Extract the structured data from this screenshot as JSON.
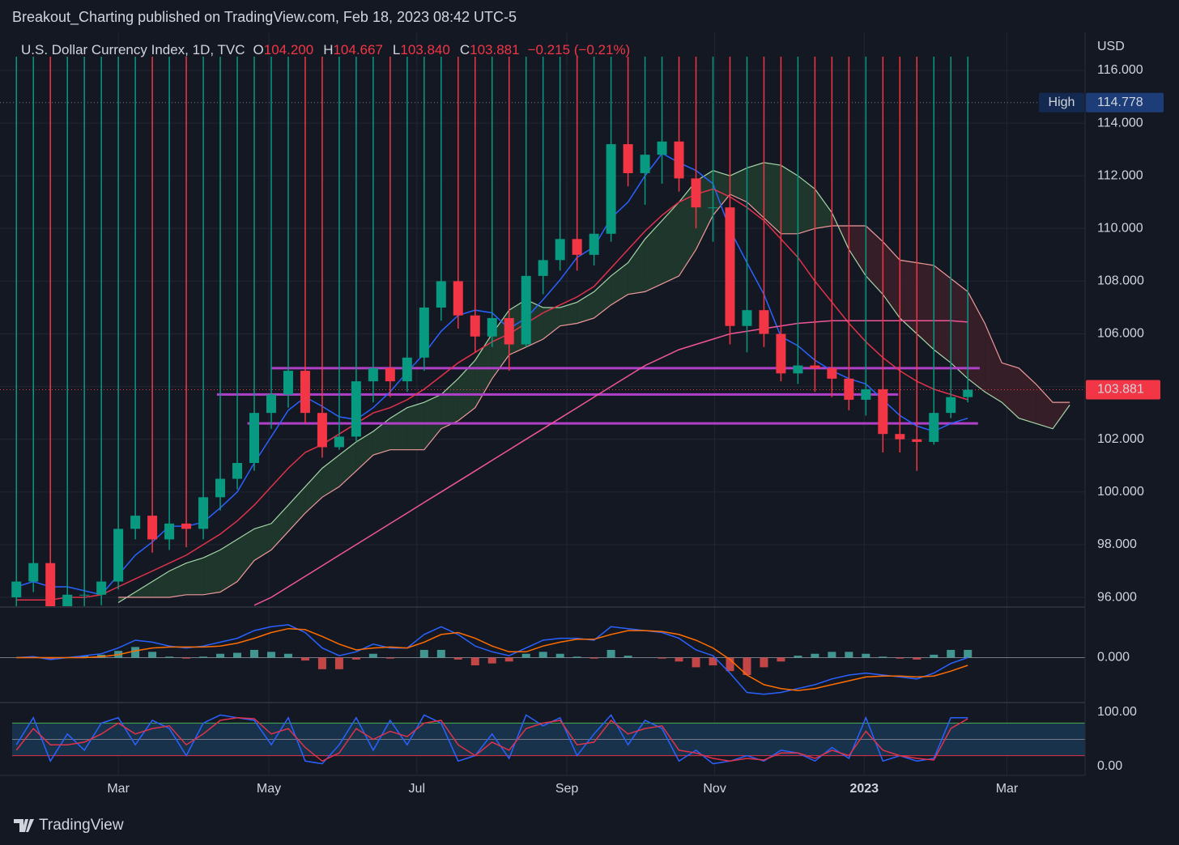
{
  "header": {
    "publisher": "Breakout_Charting published on TradingView.com, Feb 18, 2023 08:42 UTC-5",
    "brand": "TradingView"
  },
  "chart_data": [
    {
      "type": "candlestick",
      "title": "U.S. Dollar Currency Index, 1D, TVC",
      "ohlc": [
        {
          "key": "O",
          "text": "104.200"
        },
        {
          "key": "H",
          "text": "104.667"
        },
        {
          "key": "L",
          "text": "103.840"
        },
        {
          "key": "C",
          "text": "103.881"
        }
      ],
      "change": "−0.215 (−0.21%)",
      "currency": "USD",
      "up_color": "#089981",
      "down_color": "#f23645",
      "x": [
        0,
        1,
        2,
        3,
        4,
        5,
        6,
        7,
        8,
        9,
        10,
        11,
        12,
        13,
        14,
        15,
        16,
        17,
        18,
        19,
        20,
        21,
        22,
        23,
        24,
        25,
        26,
        27,
        28,
        29,
        30,
        31,
        32,
        33,
        34,
        35,
        36,
        37,
        38,
        39,
        40,
        41,
        42,
        43,
        44,
        45,
        46,
        47,
        48,
        49,
        50,
        51,
        52,
        53,
        54,
        55,
        56
      ],
      "open": [
        96.0,
        96.6,
        97.3,
        95.5,
        96.1,
        96.1,
        96.6,
        98.6,
        99.1,
        98.2,
        98.8,
        98.6,
        99.8,
        100.5,
        101.1,
        103.0,
        103.7,
        104.6,
        103.0,
        101.7,
        102.1,
        104.2,
        104.7,
        104.2,
        105.1,
        107.0,
        108.0,
        106.7,
        105.9,
        106.6,
        105.6,
        108.2,
        108.8,
        109.6,
        109.0,
        109.8,
        113.2,
        112.1,
        112.8,
        113.3,
        111.9,
        110.8,
        110.8,
        106.3,
        106.9,
        106.0,
        104.5,
        104.8,
        104.7,
        104.3,
        103.5,
        103.9,
        102.2,
        102.0,
        101.9,
        103.0,
        103.6
      ],
      "high": {
        "label": "High",
        "value": 114.778
      },
      "low": [
        95.6,
        96.2,
        95.2,
        95.3,
        95.6,
        95.7,
        96.3,
        98.2,
        97.7,
        97.8,
        97.9,
        98.2,
        99.3,
        100.1,
        100.8,
        102.4,
        103.2,
        102.6,
        101.3,
        101.6,
        101.9,
        103.4,
        103.6,
        103.8,
        104.6,
        106.5,
        106.2,
        105.3,
        105.5,
        104.6,
        105.5,
        107.5,
        108.4,
        108.4,
        108.6,
        109.5,
        111.6,
        110.9,
        111.7,
        111.4,
        110.0,
        109.5,
        105.6,
        105.3,
        105.5,
        104.2,
        104.1,
        103.8,
        103.6,
        103.1,
        102.9,
        101.5,
        101.5,
        100.8,
        101.8,
        102.8,
        103.4
      ],
      "close": [
        96.6,
        97.3,
        95.5,
        96.1,
        96.1,
        96.6,
        98.6,
        99.1,
        98.2,
        98.8,
        98.6,
        99.8,
        100.5,
        101.1,
        103.0,
        103.7,
        104.6,
        103.0,
        101.7,
        102.1,
        104.2,
        104.7,
        104.2,
        105.1,
        107.0,
        108.0,
        106.7,
        105.9,
        106.6,
        105.6,
        108.2,
        108.8,
        109.6,
        109.0,
        109.8,
        113.2,
        112.1,
        112.8,
        113.3,
        111.9,
        110.8,
        110.8,
        106.3,
        106.9,
        106.0,
        104.5,
        104.8,
        104.7,
        104.3,
        103.5,
        103.9,
        102.2,
        102.0,
        101.9,
        103.0,
        103.6,
        103.88
      ],
      "overlays": [
        {
          "color": "#2962ff",
          "values": [
            96.4,
            96.6,
            96.4,
            96.4,
            96.25,
            96.1,
            96.85,
            97.6,
            98.1,
            98.7,
            98.7,
            98.85,
            99.4,
            100.0,
            101.1,
            102.1,
            103.1,
            103.6,
            103.25,
            102.85,
            102.75,
            103.2,
            103.8,
            104.55,
            105.25,
            106.1,
            106.7,
            106.9,
            106.8,
            106.2,
            106.6,
            107.3,
            108.05,
            108.9,
            109.3,
            110.4,
            111.0,
            112.0,
            112.85,
            112.5,
            112.2,
            111.7,
            109.95,
            108.7,
            107.5,
            105.9,
            105.55,
            105.0,
            104.6,
            104.3,
            104.1,
            103.5,
            102.9,
            102.5,
            102.3,
            102.6,
            102.8
          ]
        },
        {
          "color": "#e0324a",
          "values": [
            95.9,
            95.9,
            95.9,
            96.0,
            96.0,
            96.1,
            96.4,
            96.7,
            97.0,
            97.3,
            97.6,
            98.0,
            98.4,
            98.9,
            99.5,
            100.2,
            100.9,
            101.5,
            101.8,
            102.2,
            102.6,
            103.0,
            103.2,
            103.5,
            103.9,
            104.4,
            104.9,
            105.3,
            105.7,
            106.0,
            106.4,
            106.8,
            107.1,
            107.4,
            107.8,
            108.5,
            109.2,
            109.9,
            110.5,
            111.0,
            111.3,
            111.5,
            111.2,
            110.8,
            110.3,
            109.6,
            108.9,
            108.0,
            107.2,
            106.4,
            105.7,
            105.1,
            104.6,
            104.2,
            103.9,
            103.7,
            103.5
          ]
        },
        {
          "color": "#f0559a",
          "values": [
            null,
            null,
            null,
            null,
            null,
            null,
            null,
            null,
            null,
            null,
            null,
            null,
            null,
            null,
            95.7,
            96.0,
            96.4,
            96.8,
            97.2,
            97.6,
            98.0,
            98.4,
            98.8,
            99.2,
            99.6,
            100.0,
            100.4,
            100.8,
            101.2,
            101.6,
            102.0,
            102.4,
            102.8,
            103.2,
            103.6,
            104.0,
            104.4,
            104.8,
            105.1,
            105.4,
            105.6,
            105.8,
            106.0,
            106.1,
            106.2,
            106.3,
            106.4,
            106.45,
            106.5,
            106.5,
            106.5,
            106.5,
            106.5,
            106.5,
            106.5,
            106.5,
            106.45
          ]
        }
      ],
      "cloud": {
        "x": [
          6,
          7,
          8,
          9,
          10,
          11,
          12,
          13,
          14,
          15,
          16,
          17,
          18,
          19,
          20,
          21,
          22,
          23,
          24,
          25,
          26,
          27,
          28,
          29,
          30,
          31,
          32,
          33,
          34,
          35,
          36,
          37,
          38,
          39,
          40,
          41,
          42,
          43,
          44,
          45,
          46,
          47,
          48,
          49,
          50,
          51,
          52,
          53,
          54,
          55,
          56,
          57,
          58,
          59,
          60,
          61,
          62
        ],
        "span_a": {
          "color": "#a5d6a7",
          "values": [
            95.8,
            96.2,
            96.6,
            97.0,
            97.3,
            97.5,
            97.8,
            98.2,
            98.6,
            98.8,
            99.5,
            100.2,
            100.9,
            101.4,
            101.9,
            102.3,
            102.8,
            103.2,
            103.4,
            103.7,
            104.3,
            105.0,
            106.0,
            106.9,
            107.3,
            107.0,
            107.0,
            107.2,
            107.6,
            108.2,
            108.7,
            109.6,
            110.3,
            111.0,
            111.8,
            112.2,
            112.0,
            112.3,
            112.5,
            112.4,
            112.0,
            111.5,
            110.6,
            109.2,
            108.2,
            107.5,
            106.6,
            106.0,
            105.4,
            104.9,
            104.3,
            103.8,
            103.4,
            102.8,
            102.6,
            102.4,
            103.3
          ]
        },
        "span_b": {
          "color": "#ef9a9a",
          "values": [
            96.0,
            96.0,
            96.0,
            96.0,
            96.1,
            96.1,
            96.2,
            96.6,
            97.4,
            97.8,
            98.5,
            99.2,
            99.8,
            100.2,
            100.8,
            101.4,
            101.6,
            101.6,
            101.6,
            102.4,
            102.7,
            103.2,
            104.3,
            105.2,
            105.5,
            105.8,
            106.3,
            106.4,
            106.6,
            107.1,
            107.5,
            107.6,
            107.9,
            108.2,
            109.2,
            110.5,
            111.3,
            111.0,
            110.4,
            109.8,
            109.8,
            110.0,
            110.1,
            110.1,
            110.1,
            109.5,
            108.8,
            108.7,
            108.6,
            108.1,
            107.6,
            106.4,
            104.9,
            104.7,
            104.1,
            103.4,
            103.4
          ]
        },
        "up_fill": "#1f3a2c",
        "down_fill": "#3a1f29"
      },
      "levels": {
        "color": "#b040c8",
        "items": [
          {
            "value": 104.7,
            "from": 15.0,
            "to": 56.7
          },
          {
            "value": 103.7,
            "from": 11.8,
            "to": 51.9
          },
          {
            "value": 102.6,
            "from": 13.6,
            "to": 56.6
          }
        ]
      },
      "last_price": 103.881,
      "xlim": [
        -0.25,
        62.9
      ],
      "xticks": [
        {
          "value": 6.0,
          "label": "Mar"
        },
        {
          "value": 14.86,
          "label": "May"
        },
        {
          "value": 23.57,
          "label": "Jul"
        },
        {
          "value": 32.4,
          "label": "Sep"
        },
        {
          "value": 41.1,
          "label": "Nov"
        },
        {
          "value": 49.9,
          "label": "2023"
        },
        {
          "value": 58.3,
          "label": "Mar"
        }
      ],
      "ylim": [
        95.7,
        116.5
      ],
      "yticks": [
        {
          "value": 96,
          "label": "96.000"
        },
        {
          "value": 98,
          "label": "98.000"
        },
        {
          "value": 100,
          "label": "100.000"
        },
        {
          "value": 102,
          "label": "102.000"
        },
        {
          "value": 104,
          "label": "104.000"
        },
        {
          "value": 106,
          "label": "106.000"
        },
        {
          "value": 108,
          "label": "108.000"
        },
        {
          "value": 110,
          "label": "110.000"
        },
        {
          "value": 112,
          "label": "112.000"
        },
        {
          "value": 114,
          "label": "114.000"
        },
        {
          "value": 116,
          "label": "116.000"
        }
      ],
      "grid": true
    },
    {
      "type": "macd",
      "macd": {
        "color": "#2962ff",
        "values": [
          0.0,
          0.05,
          -0.1,
          0.0,
          0.1,
          0.2,
          0.5,
          0.9,
          0.8,
          0.6,
          0.5,
          0.6,
          0.8,
          1.0,
          1.4,
          1.6,
          1.7,
          1.3,
          0.5,
          0.1,
          0.3,
          0.7,
          0.5,
          0.5,
          1.2,
          1.6,
          1.2,
          0.6,
          0.3,
          0.1,
          0.5,
          0.9,
          1.0,
          1.0,
          0.9,
          1.6,
          1.5,
          1.4,
          1.3,
          1.0,
          0.4,
          0.1,
          -0.8,
          -1.8,
          -1.9,
          -1.8,
          -1.6,
          -1.4,
          -1.1,
          -0.9,
          -0.8,
          -0.9,
          -1.0,
          -1.1,
          -0.8,
          -0.3,
          0.0
        ]
      },
      "signal": {
        "color": "#ff6d00",
        "values": [
          0.0,
          0.0,
          0.0,
          0.0,
          0.0,
          0.05,
          0.15,
          0.35,
          0.5,
          0.55,
          0.55,
          0.55,
          0.6,
          0.75,
          1.0,
          1.3,
          1.5,
          1.45,
          1.1,
          0.7,
          0.4,
          0.5,
          0.55,
          0.5,
          0.8,
          1.2,
          1.3,
          1.0,
          0.6,
          0.3,
          0.3,
          0.6,
          0.8,
          0.95,
          0.95,
          1.2,
          1.4,
          1.4,
          1.35,
          1.2,
          0.9,
          0.5,
          -0.1,
          -0.9,
          -1.4,
          -1.6,
          -1.7,
          -1.6,
          -1.4,
          -1.2,
          -1.0,
          -0.95,
          -0.95,
          -1.0,
          -0.95,
          -0.7,
          -0.4
        ]
      },
      "histogram": {
        "up_color": "#4db6ac",
        "down_color": "#ef5350",
        "values": [
          0,
          0.05,
          -0.1,
          0,
          0.1,
          0.15,
          0.35,
          0.55,
          0.3,
          0.05,
          -0.05,
          0.05,
          0.2,
          0.25,
          0.4,
          0.3,
          0.2,
          -0.15,
          -0.6,
          -0.6,
          -0.1,
          0.2,
          -0.05,
          0,
          0.4,
          0.4,
          -0.1,
          -0.4,
          -0.3,
          -0.2,
          0.2,
          0.3,
          0.2,
          0.05,
          -0.05,
          0.4,
          0.1,
          0,
          -0.05,
          -0.2,
          -0.5,
          -0.4,
          -0.7,
          -0.9,
          -0.5,
          -0.2,
          0.1,
          0.2,
          0.3,
          0.3,
          0.2,
          0.05,
          -0.05,
          -0.1,
          0.15,
          0.4,
          0.4
        ]
      },
      "ylim": [
        -2.2,
        2.2
      ],
      "yticks": [
        {
          "value": 0,
          "label": "0.000"
        }
      ]
    },
    {
      "type": "stoch",
      "k": {
        "color": "#2962ff",
        "values": [
          40,
          90,
          10,
          60,
          30,
          80,
          90,
          40,
          85,
          70,
          20,
          80,
          95,
          90,
          85,
          40,
          90,
          10,
          5,
          40,
          90,
          30,
          85,
          40,
          95,
          80,
          10,
          20,
          60,
          15,
          95,
          75,
          90,
          20,
          60,
          95,
          40,
          85,
          70,
          10,
          30,
          5,
          10,
          20,
          10,
          30,
          25,
          10,
          35,
          15,
          90,
          10,
          20,
          10,
          15,
          90,
          90
        ]
      },
      "d": {
        "color": "#e0324a",
        "values": [
          30,
          70,
          40,
          40,
          45,
          60,
          80,
          60,
          70,
          75,
          40,
          60,
          85,
          90,
          88,
          60,
          70,
          35,
          10,
          25,
          70,
          50,
          65,
          55,
          80,
          85,
          40,
          20,
          45,
          30,
          70,
          80,
          85,
          40,
          45,
          85,
          60,
          70,
          75,
          30,
          25,
          15,
          10,
          15,
          12,
          25,
          25,
          15,
          30,
          20,
          65,
          30,
          20,
          15,
          12,
          70,
          88
        ]
      },
      "bands": [
        {
          "value": 80,
          "color": "#4caf50"
        },
        {
          "value": 50,
          "color": "#787b86"
        },
        {
          "value": 20,
          "color": "#e0324a"
        }
      ],
      "band_fill": "#17324a",
      "ylim": [
        0,
        100
      ],
      "yticks": [
        {
          "value": 100,
          "label": "100.00"
        },
        {
          "value": 0,
          "label": "0.00"
        }
      ]
    }
  ]
}
